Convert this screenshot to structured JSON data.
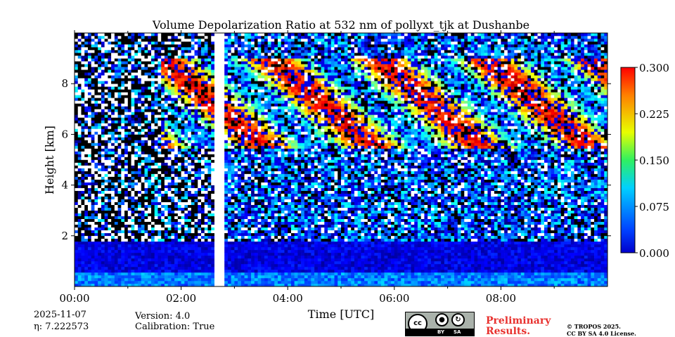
{
  "chart_data": {
    "type": "heatmap",
    "title": "Volume Depolarization Ratio at 532 nm of pollyxt_tjk at Dushanbe",
    "xlabel": "Time [UTC]",
    "ylabel": "Height [km]",
    "xlim_hours": [
      0,
      10
    ],
    "ylim_km": [
      0,
      10
    ],
    "x_ticks": [
      {
        "value": 0,
        "label": "00:00"
      },
      {
        "value": 2,
        "label": "02:00"
      },
      {
        "value": 4,
        "label": "04:00"
      },
      {
        "value": 6,
        "label": "06:00"
      },
      {
        "value": 8,
        "label": "08:00"
      }
    ],
    "y_ticks": [
      {
        "value": 2,
        "label": "2"
      },
      {
        "value": 4,
        "label": "4"
      },
      {
        "value": 6,
        "label": "6"
      },
      {
        "value": 8,
        "label": "8"
      }
    ],
    "colorbar": {
      "min": 0.0,
      "max": 0.3,
      "ticks": [
        "0.000",
        "0.075",
        "0.150",
        "0.225",
        "0.300"
      ],
      "colormap": "jet"
    },
    "data_gap_hours": [
      2.65,
      2.83
    ],
    "regions": [
      {
        "name": "near-surface aerosol layer",
        "time_hours": [
          0,
          10
        ],
        "height_km": [
          0,
          0.6
        ],
        "depol": 0.07
      },
      {
        "name": "boundary layer",
        "time_hours": [
          0,
          10
        ],
        "height_km": [
          0.6,
          1.8
        ],
        "depol": 0.03
      },
      {
        "name": "cirrus cloud band",
        "time_hours": [
          1.6,
          10
        ],
        "height_km": [
          5.5,
          9.0
        ],
        "depol": 0.2
      }
    ]
  },
  "footer": {
    "date": "2025-11-07",
    "eta_label": "η: 7.222573",
    "version": "Version: 4.0",
    "calibration": "Calibration: True",
    "preliminary_line1": "Preliminary",
    "preliminary_line2": "Results.",
    "copyright_line1": "© TROPOS 2025.",
    "copyright_line2": "CC BY SA 4.0 License.",
    "license_by": "BY",
    "license_sa": "SA"
  }
}
